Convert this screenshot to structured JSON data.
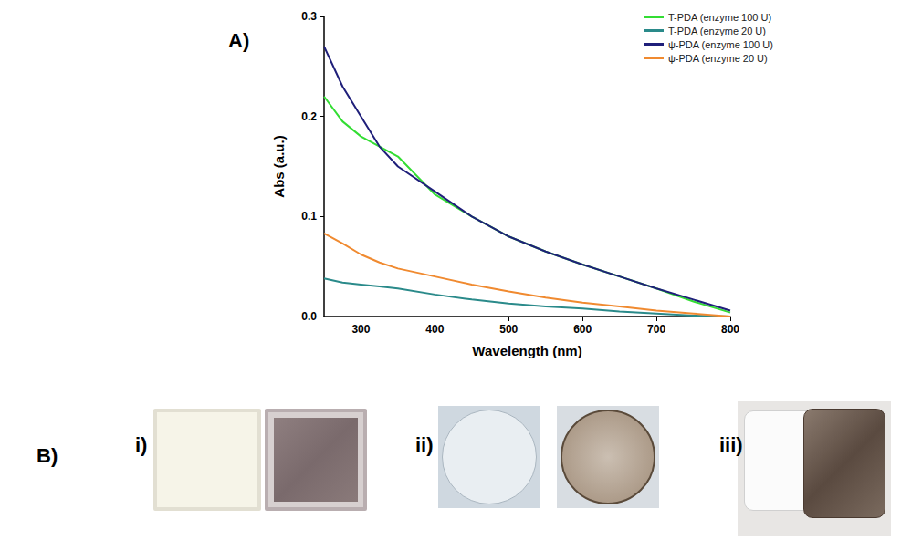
{
  "panel_a_label": "A)",
  "chart_data": {
    "type": "line",
    "x_label": "Wavelength (nm)",
    "y_label": "Abs (a.u.)",
    "x": [
      250,
      275,
      300,
      325,
      350,
      400,
      450,
      500,
      550,
      600,
      650,
      700,
      750,
      800
    ],
    "series": [
      {
        "name": "T-PDA (enzyme 100 U)",
        "color": "#33dd33",
        "values": [
          0.22,
          0.195,
          0.18,
          0.17,
          0.16,
          0.122,
          0.1,
          0.08,
          0.065,
          0.052,
          0.04,
          0.028,
          0.015,
          0.004
        ]
      },
      {
        "name": "T-PDA (enzyme 20 U)",
        "color": "#2a8a8a",
        "values": [
          0.038,
          0.034,
          0.032,
          0.03,
          0.028,
          0.022,
          0.017,
          0.013,
          0.01,
          0.008,
          0.005,
          0.003,
          0.001,
          0.0
        ]
      },
      {
        "name": "ψ-PDA (enzyme 100 U)",
        "color": "#1f1f7a",
        "values": [
          0.27,
          0.23,
          0.2,
          0.17,
          0.15,
          0.125,
          0.1,
          0.08,
          0.065,
          0.052,
          0.04,
          0.028,
          0.017,
          0.006
        ]
      },
      {
        "name": "ψ-PDA (enzyme 20 U)",
        "color": "#f08a30",
        "values": [
          0.083,
          0.073,
          0.062,
          0.054,
          0.048,
          0.04,
          0.032,
          0.025,
          0.019,
          0.014,
          0.01,
          0.006,
          0.003,
          0.0
        ]
      }
    ],
    "xlim": [
      250,
      800
    ],
    "ylim": [
      0,
      0.3
    ],
    "xticks": [
      300,
      400,
      500,
      600,
      700,
      800
    ],
    "yticks": [
      {
        "value": 0,
        "label": "0.0"
      },
      {
        "value": 0.1,
        "label": "0.1"
      },
      {
        "value": 0.2,
        "label": "0.2"
      },
      {
        "value": 0.3,
        "label": "0.3"
      }
    ],
    "grid": false,
    "legend": "upper right"
  },
  "panel_b": {
    "label": "B)",
    "items": [
      {
        "label": "i)"
      },
      {
        "label": "ii)"
      },
      {
        "label": "iii)"
      }
    ]
  }
}
